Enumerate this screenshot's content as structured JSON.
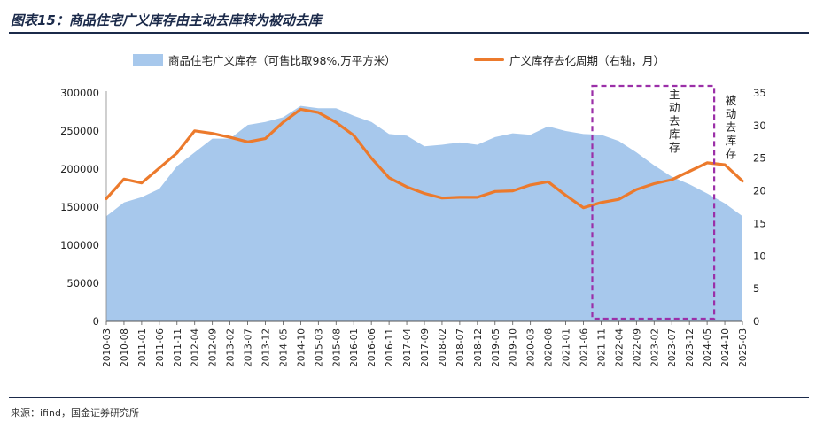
{
  "header": {
    "title": "图表15：商品住宅广义库存由主动去库转为被动去库",
    "source": "来源：ifind，国金证券研究所"
  },
  "chart_data": {
    "type": "area",
    "title": "图表15：商品住宅广义库存由主动去库转为被动去库",
    "legend_position": "top",
    "grid": false,
    "x_labels": [
      "2010-03",
      "2010-08",
      "2011-01",
      "2011-06",
      "2011-11",
      "2012-04",
      "2012-09",
      "2013-02",
      "2013-07",
      "2013-12",
      "2014-05",
      "2014-10",
      "2015-03",
      "2015-08",
      "2016-01",
      "2016-06",
      "2016-11",
      "2017-04",
      "2017-09",
      "2018-02",
      "2018-07",
      "2018-12",
      "2019-05",
      "2019-10",
      "2020-03",
      "2020-08",
      "2021-01",
      "2021-06",
      "2021-11",
      "2022-04",
      "2022-09",
      "2023-02",
      "2023-07",
      "2023-12",
      "2024-05",
      "2024-10",
      "2025-03"
    ],
    "y_left": {
      "min": 0,
      "max": 300000,
      "ticks": [
        0,
        50000,
        100000,
        150000,
        200000,
        250000,
        300000
      ]
    },
    "y_right": {
      "min": 0,
      "max": 35,
      "ticks": [
        0,
        5,
        10,
        15,
        20,
        25,
        30,
        35
      ]
    },
    "series": [
      {
        "name": "商品住宅广义库存（可售比取98%,万平方米）",
        "type": "area",
        "axis": "left",
        "color": "#a7c8ec",
        "values": [
          138000,
          156000,
          163000,
          174000,
          204000,
          222000,
          240000,
          240000,
          258000,
          262000,
          268000,
          283000,
          280000,
          280000,
          270000,
          262000,
          246000,
          244000,
          230000,
          232000,
          235000,
          232000,
          242000,
          247000,
          245000,
          256000,
          250000,
          246000,
          245000,
          237000,
          222000,
          205000,
          190000,
          180000,
          168000,
          155000,
          138000
        ]
      },
      {
        "name": "广义库存去化周期（右轴，月）",
        "type": "line",
        "axis": "right",
        "color": "#ec7a2c",
        "values": [
          18.8,
          21.8,
          21.2,
          23.5,
          25.8,
          29.2,
          28.8,
          28.2,
          27.5,
          28,
          30.5,
          32.5,
          32,
          30.5,
          28.5,
          25,
          22,
          20.6,
          19.6,
          18.9,
          19,
          19,
          19.9,
          20,
          20.9,
          21.4,
          19.3,
          17.4,
          18.2,
          18.7,
          20.2,
          21.1,
          21.7,
          23,
          24.3,
          24,
          21.5
        ]
      }
    ],
    "annotations": {
      "active_label": "主动去库存",
      "passive_label": "被动去库存",
      "box_from": "2021-06",
      "box_to": "2024-05",
      "box_color": "#9b2fa8"
    }
  }
}
